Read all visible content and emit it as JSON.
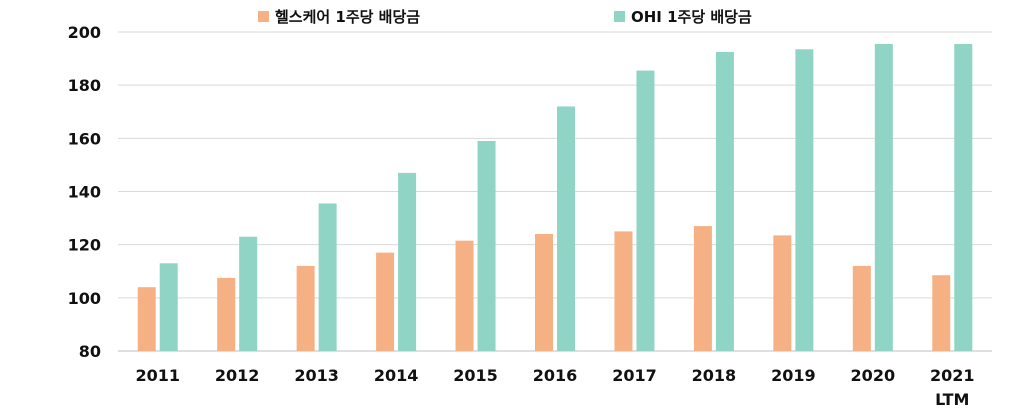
{
  "chart_data": {
    "type": "bar",
    "categories": [
      [
        "2011"
      ],
      [
        "2012"
      ],
      [
        "2013"
      ],
      [
        "2014"
      ],
      [
        "2015"
      ],
      [
        "2016"
      ],
      [
        "2017"
      ],
      [
        "2018"
      ],
      [
        "2019"
      ],
      [
        "2020"
      ],
      [
        "2021",
        "LTM"
      ]
    ],
    "series": [
      {
        "name": "헬스케어 1주당 배당금",
        "color": "#F5B183",
        "values": [
          104,
          107.5,
          112,
          117,
          121.5,
          124,
          125,
          127,
          123.5,
          112,
          108.5
        ]
      },
      {
        "name": "OHI 1주당 배당금",
        "color": "#8FD4C4",
        "values": [
          113,
          123,
          135.5,
          147,
          159,
          172,
          185.5,
          192.5,
          193.5,
          195.5,
          195.5
        ]
      }
    ],
    "ylim": [
      80,
      200
    ],
    "yticks": [
      80,
      100,
      120,
      140,
      160,
      180,
      200
    ],
    "grid": true,
    "legend_position": "top"
  }
}
